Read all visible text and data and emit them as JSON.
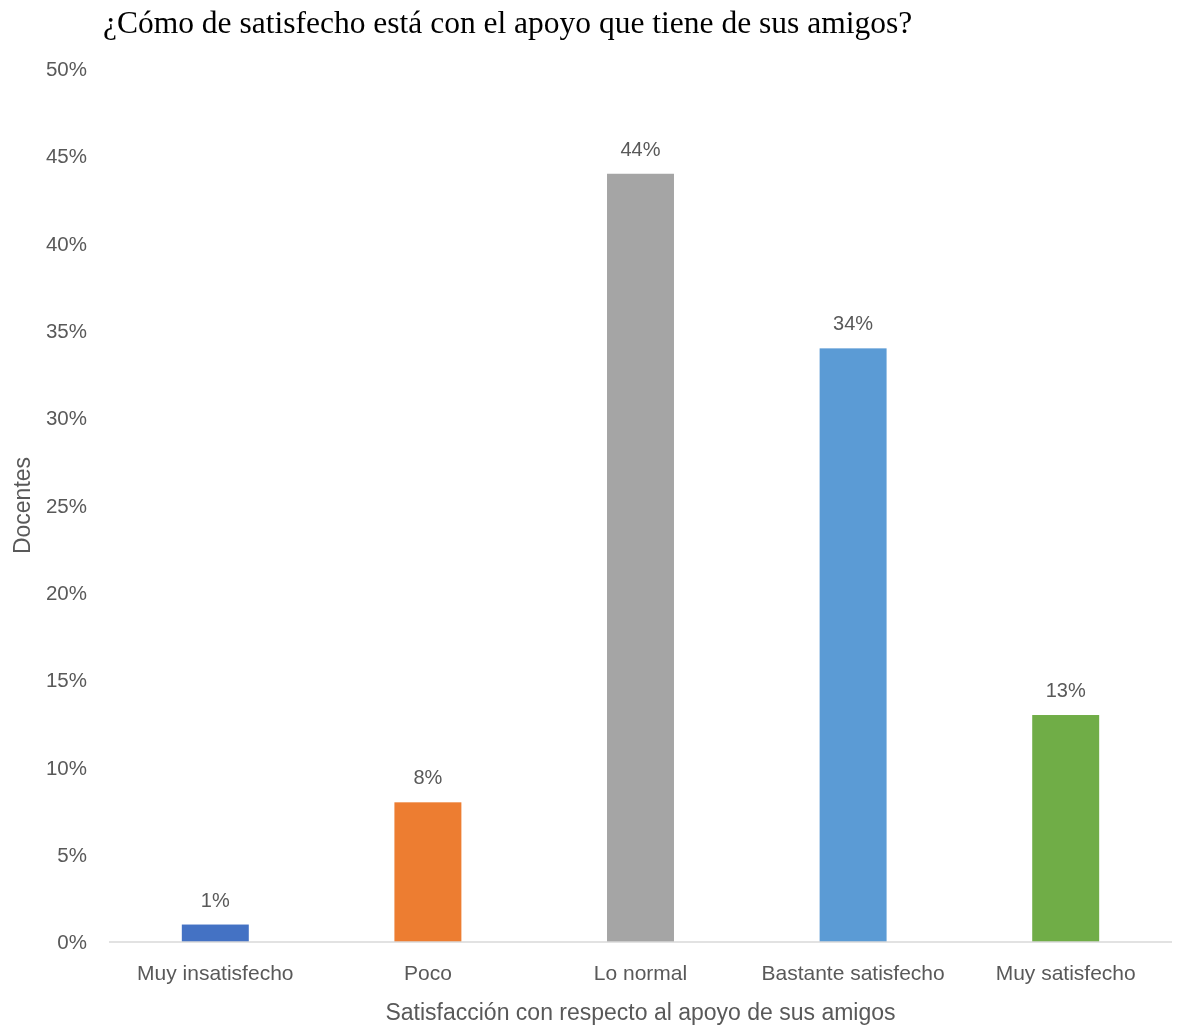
{
  "chart_data": {
    "type": "bar",
    "title": "¿Cómo de satisfecho está con el apoyo que tiene de sus amigos?",
    "xlabel": "Satisfacción con respecto al apoyo de sus amigos",
    "ylabel": "Docentes",
    "categories": [
      "Muy insatisfecho",
      "Poco",
      "Lo normal",
      "Bastante satisfecho",
      "Muy satisfecho"
    ],
    "values": [
      1,
      8,
      44,
      34,
      13
    ],
    "colors": [
      "#4472c4",
      "#ed7d31",
      "#a5a5a5",
      "#5b9bd5",
      "#70ad47"
    ],
    "value_labels": [
      "1%",
      "8%",
      "44%",
      "34%",
      "13%"
    ],
    "ylim": [
      0,
      50
    ],
    "yticks": [
      {
        "value": 0,
        "label": "0%"
      },
      {
        "value": 5,
        "label": "5%"
      },
      {
        "value": 10,
        "label": "10%"
      },
      {
        "value": 15,
        "label": "15%"
      },
      {
        "value": 20,
        "label": "20%"
      },
      {
        "value": 25,
        "label": "25%"
      },
      {
        "value": 30,
        "label": "30%"
      },
      {
        "value": 35,
        "label": "35%"
      },
      {
        "value": 40,
        "label": "40%"
      },
      {
        "value": 45,
        "label": "45%"
      },
      {
        "value": 50,
        "label": "50%"
      }
    ]
  }
}
